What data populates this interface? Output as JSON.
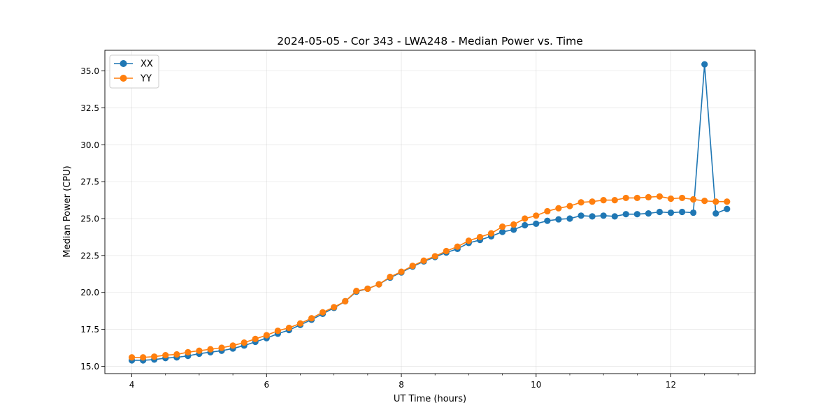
{
  "chart_data": {
    "type": "line",
    "title": "2024-05-05 - Cor 343 - LWA248 - Median Power vs. Time",
    "xlabel": "UT Time (hours)",
    "ylabel": "Median Power (CPU)",
    "xlim": [
      3.6,
      13.25
    ],
    "ylim": [
      14.5,
      36.4
    ],
    "xticks": [
      4,
      6,
      8,
      10,
      12
    ],
    "xtick_labels": [
      "4",
      "6",
      "8",
      "10",
      "12"
    ],
    "yticks": [
      15.0,
      17.5,
      20.0,
      22.5,
      25.0,
      27.5,
      30.0,
      32.5,
      35.0
    ],
    "ytick_labels": [
      "15.0",
      "17.5",
      "20.0",
      "22.5",
      "25.0",
      "27.5",
      "30.0",
      "32.5",
      "35.0"
    ],
    "grid": true,
    "legend_position": "top-left",
    "x": [
      4.0,
      4.167,
      4.333,
      4.5,
      4.667,
      4.833,
      5.0,
      5.167,
      5.333,
      5.5,
      5.667,
      5.833,
      6.0,
      6.167,
      6.333,
      6.5,
      6.667,
      6.833,
      7.0,
      7.167,
      7.333,
      7.5,
      7.667,
      7.833,
      8.0,
      8.167,
      8.333,
      8.5,
      8.667,
      8.833,
      9.0,
      9.167,
      9.333,
      9.5,
      9.667,
      9.833,
      10.0,
      10.167,
      10.333,
      10.5,
      10.667,
      10.833,
      11.0,
      11.167,
      11.333,
      11.5,
      11.667,
      11.833,
      12.0,
      12.167,
      12.333,
      12.5,
      12.667,
      12.833
    ],
    "series": [
      {
        "name": "XX",
        "color": "#1f77b4",
        "values": [
          15.4,
          15.4,
          15.45,
          15.55,
          15.6,
          15.7,
          15.85,
          15.95,
          16.05,
          16.2,
          16.4,
          16.65,
          16.9,
          17.2,
          17.45,
          17.8,
          18.15,
          18.55,
          18.95,
          19.4,
          20.05,
          20.25,
          20.55,
          21.0,
          21.35,
          21.75,
          22.1,
          22.4,
          22.7,
          22.95,
          23.35,
          23.55,
          23.8,
          24.1,
          24.25,
          24.55,
          24.65,
          24.85,
          24.95,
          25.0,
          25.2,
          25.15,
          25.2,
          25.15,
          25.3,
          25.3,
          25.35,
          25.45,
          25.4,
          25.45,
          25.4,
          35.45,
          25.35,
          25.65
        ]
      },
      {
        "name": "YY",
        "color": "#ff7f0e",
        "values": [
          15.6,
          15.6,
          15.65,
          15.75,
          15.8,
          15.95,
          16.05,
          16.15,
          16.25,
          16.4,
          16.6,
          16.85,
          17.1,
          17.4,
          17.6,
          17.9,
          18.25,
          18.65,
          19.0,
          19.4,
          20.1,
          20.25,
          20.55,
          21.05,
          21.4,
          21.8,
          22.15,
          22.45,
          22.8,
          23.1,
          23.5,
          23.75,
          24.0,
          24.45,
          24.6,
          25.0,
          25.2,
          25.5,
          25.7,
          25.85,
          26.1,
          26.15,
          26.25,
          26.25,
          26.4,
          26.4,
          26.45,
          26.5,
          26.35,
          26.4,
          26.3,
          26.2,
          26.15,
          26.15
        ]
      }
    ]
  }
}
